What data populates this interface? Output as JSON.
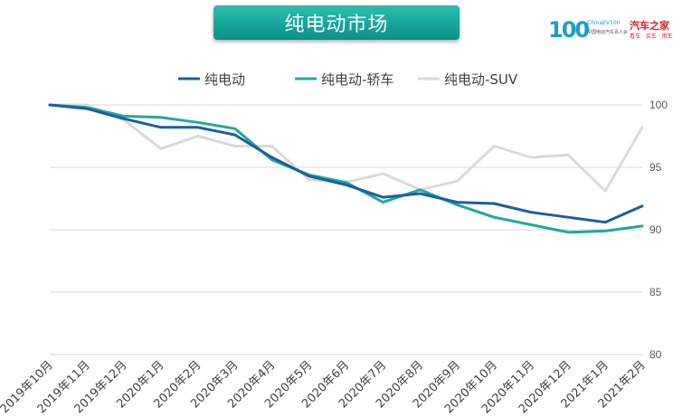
{
  "header": {
    "title": "纯电动市场"
  },
  "logo": {
    "mark": "100",
    "name": "ChinaEV100",
    "subtitle": "中国电动汽车百人会",
    "brand": "汽车之家",
    "slogan": "看车 · 买车 · 用车"
  },
  "colors": {
    "series": [
      "#1a5fa0",
      "#20a99b",
      "#d9d9d9"
    ],
    "grid": "#d9d9d9",
    "banner": "#17a69a"
  },
  "chart_data": {
    "type": "line",
    "categories": [
      "2019年10月",
      "2019年11月",
      "2019年12月",
      "2020年1月",
      "2020年2月",
      "2020年3月",
      "2020年4月",
      "2020年5月",
      "2020年6月",
      "2020年7月",
      "2020年8月",
      "2020年9月",
      "2020年10月",
      "2020年11月",
      "2020年12月",
      "2021年1月",
      "2021年2月"
    ],
    "series": [
      {
        "name": "纯电动",
        "values": [
          100,
          99.7,
          98.9,
          98.2,
          98.2,
          97.6,
          95.8,
          94.3,
          93.6,
          92.6,
          92.9,
          92.2,
          92.1,
          91.4,
          91.0,
          90.6,
          91.9
        ]
      },
      {
        "name": "纯电动-轿车",
        "values": [
          100,
          99.8,
          99.1,
          99.0,
          98.6,
          98.1,
          95.6,
          94.4,
          93.8,
          92.2,
          93.2,
          92.0,
          91.0,
          90.4,
          89.8,
          89.9,
          90.3
        ]
      },
      {
        "name": "纯电动-SUV",
        "values": [
          100,
          100,
          98.8,
          96.5,
          97.5,
          96.7,
          96.7,
          94.0,
          93.8,
          94.5,
          93.2,
          93.9,
          96.7,
          95.8,
          96.0,
          93.1,
          98.2
        ]
      }
    ],
    "ylim": [
      80,
      100
    ],
    "yticks": [
      80,
      85,
      90,
      95,
      100
    ],
    "grid": true,
    "legend_position": "top"
  }
}
